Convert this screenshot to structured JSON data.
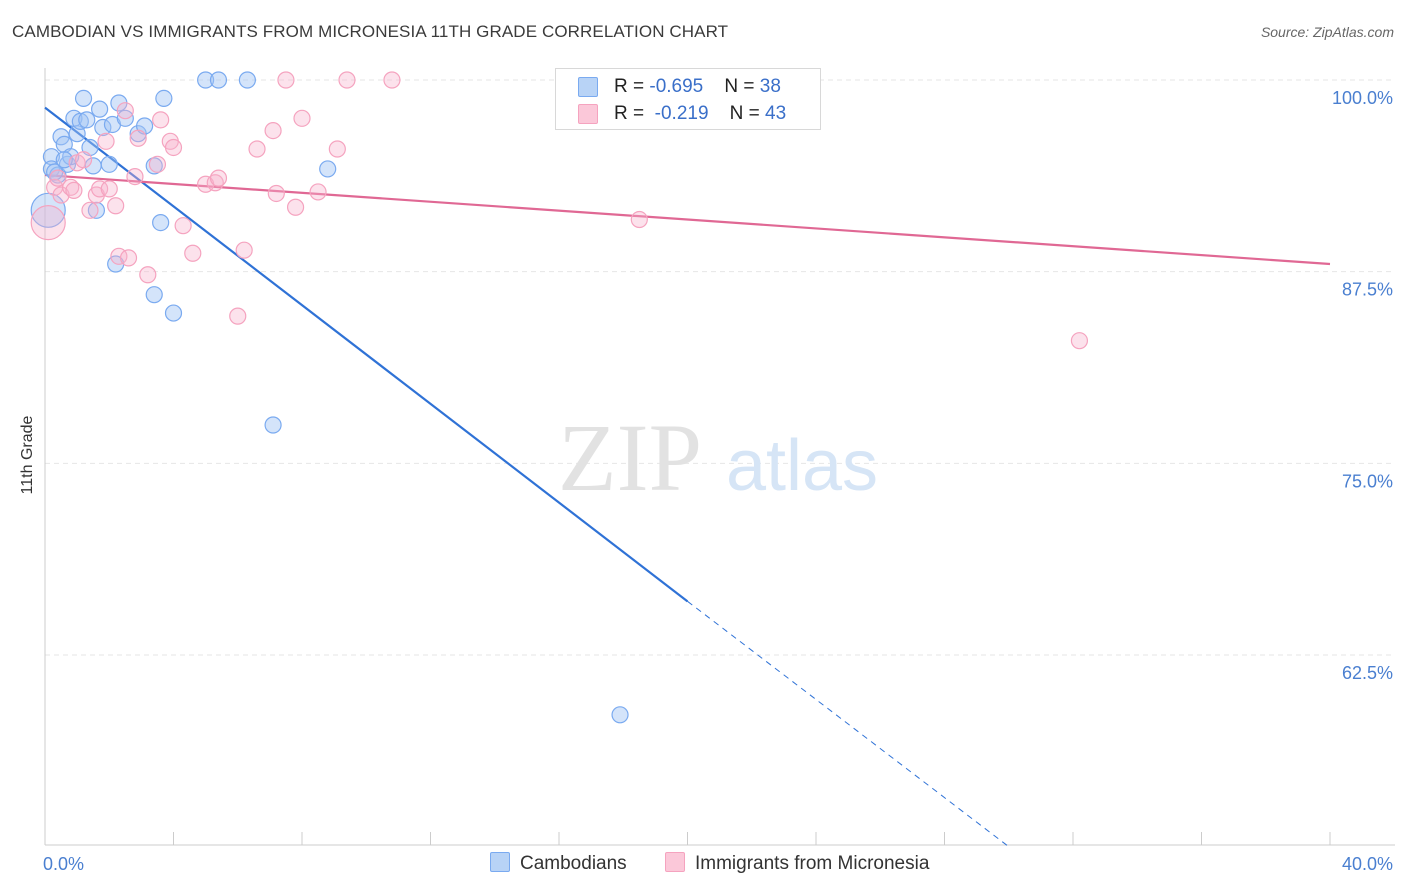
{
  "title": "CAMBODIAN VS IMMIGRANTS FROM MICRONESIA 11TH GRADE CORRELATION CHART",
  "source": "Source: ZipAtlas.com",
  "watermark": {
    "zip": "ZIP",
    "atlas": "atlas"
  },
  "legend": {
    "rows": [
      {
        "r_label": "R = ",
        "r_value": "-0.695",
        "n_label": "N = ",
        "n_value": "38"
      },
      {
        "r_label": "R = ",
        "r_value": "-0.219",
        "n_label": "N = ",
        "n_value": "43"
      }
    ]
  },
  "chart_data": {
    "type": "scatter",
    "title": "CAMBODIAN VS IMMIGRANTS FROM MICRONESIA 11TH GRADE CORRELATION CHART",
    "xlabel": "",
    "ylabel": "11th Grade",
    "xlim": [
      0,
      40
    ],
    "ylim": [
      50,
      102
    ],
    "x_tick_labels": [
      "0.0%",
      "40.0%"
    ],
    "y_ticks": [
      62.5,
      75.0,
      87.5,
      100.0
    ],
    "y_tick_labels": [
      "62.5%",
      "75.0%",
      "87.5%",
      "100.0%"
    ],
    "grid": true,
    "legend_position": "bottom",
    "series": [
      {
        "name": "Cambodians",
        "color": "#7aaaf0",
        "line_color": "#2f72d6",
        "r": -0.695,
        "n": 38,
        "trend": {
          "x0": 0,
          "y0": 98.2,
          "x1": 20.0,
          "y1": 66.0,
          "dash_x1": 30.0,
          "dash_y1": 50.0
        },
        "points": [
          [
            0.1,
            91.5
          ],
          [
            0.2,
            95.0
          ],
          [
            0.2,
            94.2
          ],
          [
            0.4,
            93.8
          ],
          [
            0.5,
            96.3
          ],
          [
            0.6,
            95.8
          ],
          [
            0.7,
            94.5
          ],
          [
            0.8,
            95.0
          ],
          [
            0.9,
            97.5
          ],
          [
            1.0,
            96.5
          ],
          [
            1.1,
            97.3
          ],
          [
            1.2,
            98.8
          ],
          [
            1.3,
            97.4
          ],
          [
            1.4,
            95.6
          ],
          [
            1.5,
            94.4
          ],
          [
            1.6,
            91.5
          ],
          [
            1.7,
            98.1
          ],
          [
            1.8,
            96.9
          ],
          [
            2.0,
            94.5
          ],
          [
            2.1,
            97.1
          ],
          [
            2.2,
            88.0
          ],
          [
            2.3,
            98.5
          ],
          [
            2.5,
            97.5
          ],
          [
            2.9,
            96.5
          ],
          [
            3.1,
            97.0
          ],
          [
            3.4,
            94.4
          ],
          [
            3.4,
            86.0
          ],
          [
            3.6,
            90.7
          ],
          [
            3.7,
            98.8
          ],
          [
            4.0,
            84.8
          ],
          [
            5.0,
            100.0
          ],
          [
            5.4,
            100.0
          ],
          [
            6.3,
            100.0
          ],
          [
            7.1,
            77.5
          ],
          [
            8.8,
            94.2
          ],
          [
            17.9,
            58.6
          ],
          [
            0.3,
            94.0
          ],
          [
            0.6,
            94.8
          ]
        ]
      },
      {
        "name": "Immigrants from Micronesia",
        "color": "#f5a3bf",
        "line_color": "#e06894",
        "r": -0.219,
        "n": 43,
        "trend": {
          "x0": 0,
          "y0": 93.8,
          "x1": 40.0,
          "y1": 88.0
        },
        "points": [
          [
            0.1,
            90.7
          ],
          [
            0.3,
            93.0
          ],
          [
            0.5,
            92.5
          ],
          [
            0.8,
            93.0
          ],
          [
            0.9,
            92.8
          ],
          [
            1.0,
            94.6
          ],
          [
            1.2,
            94.8
          ],
          [
            1.4,
            91.5
          ],
          [
            1.6,
            92.5
          ],
          [
            1.7,
            92.9
          ],
          [
            1.9,
            96.0
          ],
          [
            2.0,
            92.9
          ],
          [
            2.2,
            91.8
          ],
          [
            2.3,
            88.5
          ],
          [
            2.5,
            98.0
          ],
          [
            2.6,
            88.4
          ],
          [
            2.8,
            93.7
          ],
          [
            2.9,
            96.2
          ],
          [
            3.2,
            87.3
          ],
          [
            3.5,
            94.5
          ],
          [
            3.6,
            97.4
          ],
          [
            3.9,
            96.0
          ],
          [
            4.0,
            95.6
          ],
          [
            4.3,
            90.5
          ],
          [
            4.6,
            88.7
          ],
          [
            5.0,
            93.2
          ],
          [
            5.3,
            93.3
          ],
          [
            5.4,
            93.6
          ],
          [
            6.0,
            84.6
          ],
          [
            6.2,
            88.9
          ],
          [
            6.6,
            95.5
          ],
          [
            7.1,
            96.7
          ],
          [
            7.2,
            92.6
          ],
          [
            7.5,
            100.0
          ],
          [
            7.8,
            91.7
          ],
          [
            8.0,
            97.5
          ],
          [
            8.5,
            92.7
          ],
          [
            9.1,
            95.5
          ],
          [
            9.4,
            100.0
          ],
          [
            10.8,
            100.0
          ],
          [
            18.5,
            90.9
          ],
          [
            32.2,
            83.0
          ],
          [
            0.4,
            93.6
          ]
        ]
      }
    ]
  }
}
